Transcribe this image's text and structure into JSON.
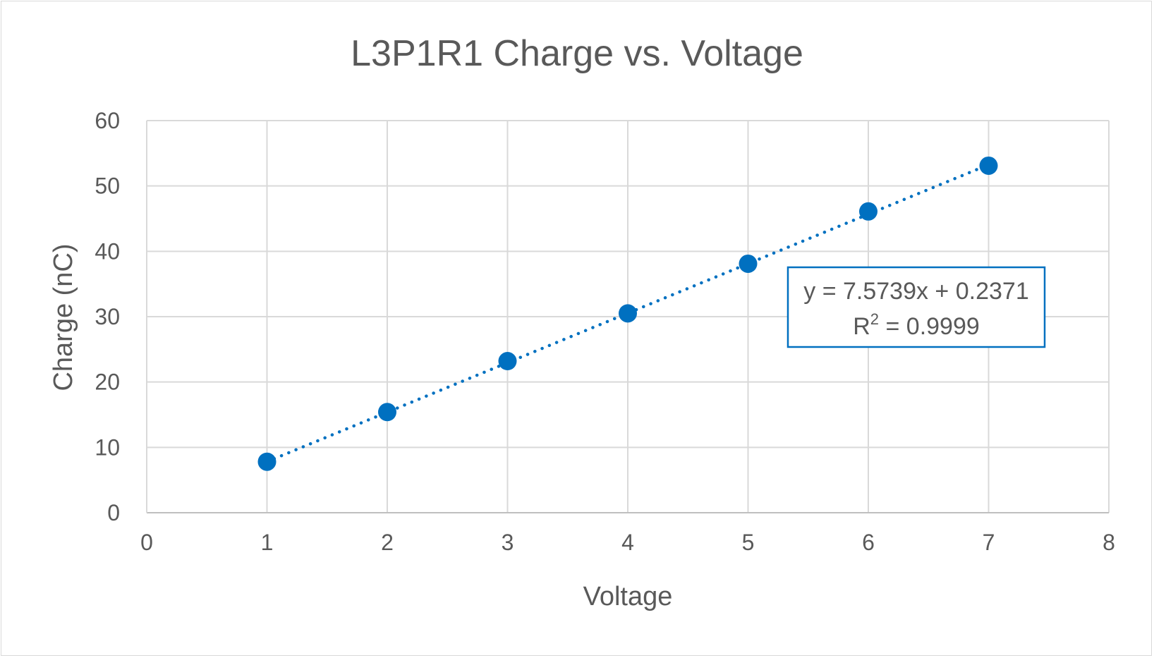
{
  "chart_data": {
    "type": "scatter",
    "title": "L3P1R1 Charge vs. Voltage",
    "xlabel": "Voltage",
    "ylabel": "Charge (nC)",
    "xlim": [
      0,
      8
    ],
    "ylim": [
      0,
      60
    ],
    "x_ticks": [
      "0",
      "1",
      "2",
      "3",
      "4",
      "5",
      "6",
      "7",
      "8"
    ],
    "y_ticks": [
      "0",
      "10",
      "20",
      "30",
      "40",
      "50",
      "60"
    ],
    "grid": true,
    "series": [
      {
        "x": [
          1,
          2,
          3,
          4,
          5,
          6,
          7
        ],
        "y": [
          7.8,
          15.4,
          23.2,
          30.5,
          38.1,
          46.1,
          53.1
        ],
        "color": "#0070c0"
      }
    ],
    "trendline": {
      "type": "linear",
      "style": "dotted",
      "color": "#0070c0",
      "slope": 7.5739,
      "intercept": 0.2371,
      "x_range": [
        1,
        7
      ],
      "equation": "y = 7.5739x + 0.2371",
      "r2_prefix": "R",
      "r2_exp": "2",
      "r2_value": " = 0.9999"
    }
  }
}
